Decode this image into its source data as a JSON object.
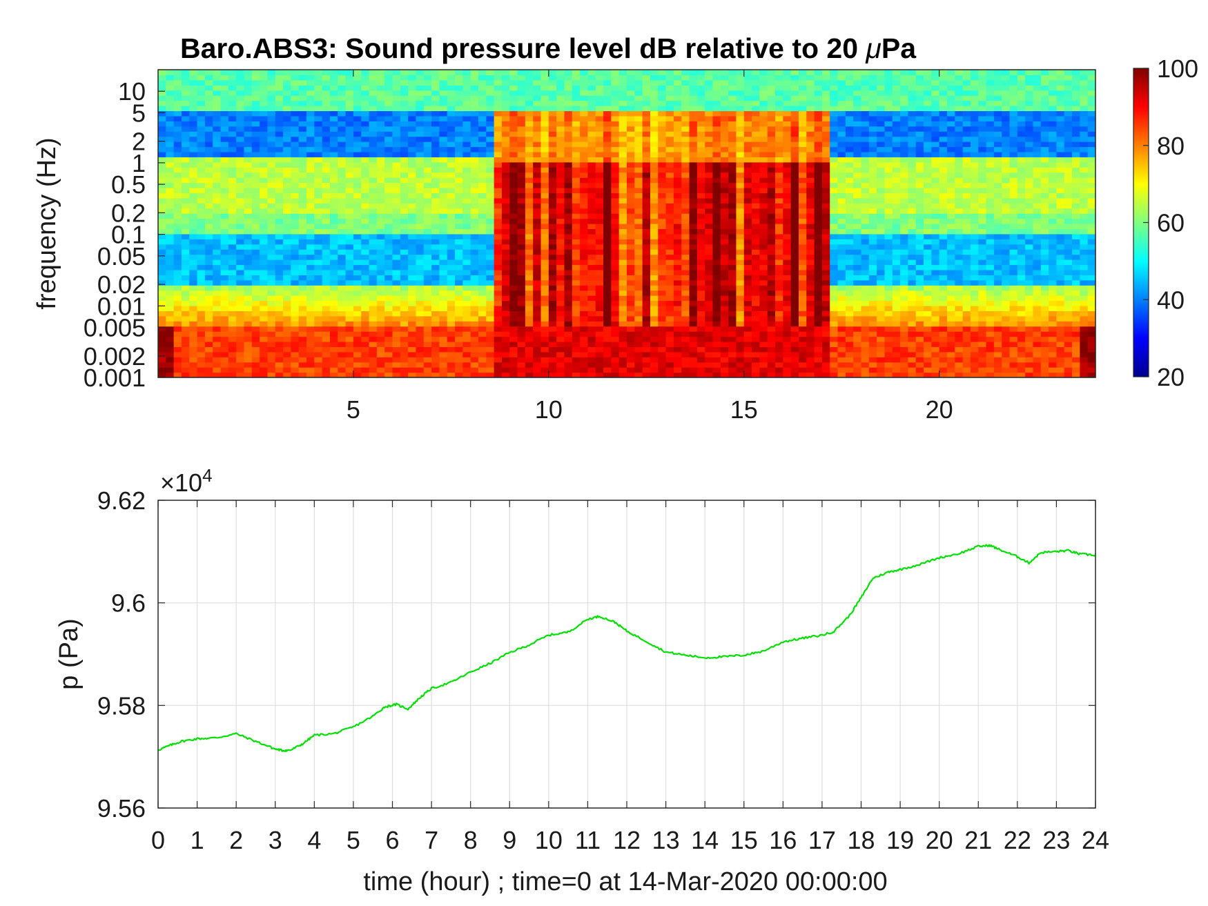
{
  "chart_data": [
    {
      "type": "heatmap",
      "title": "Baro.ABS3: Sound pressure level dB relative to 20 μPa",
      "title_prefix": "Baro.ABS3: Sound pressure level dB relative to 20 ",
      "title_mu": "μ",
      "title_suffix": "Pa",
      "ylabel": "frequency (Hz)",
      "xlabel": "",
      "x_unit": "hour",
      "xlim": [
        0,
        24
      ],
      "ylim": [
        0.001,
        20
      ],
      "yscale": "log",
      "x_ticks": [
        5,
        10,
        15,
        20
      ],
      "y_ticks": [
        {
          "value": 10,
          "label": "10"
        },
        {
          "value": 5,
          "label": "5"
        },
        {
          "value": 2,
          "label": "2"
        },
        {
          "value": 1,
          "label": "1"
        },
        {
          "value": 0.5,
          "label": "0.5"
        },
        {
          "value": 0.2,
          "label": "0.2"
        },
        {
          "value": 0.1,
          "label": "0.1"
        },
        {
          "value": 0.05,
          "label": "0.05"
        },
        {
          "value": 0.02,
          "label": "0.02"
        },
        {
          "value": 0.01,
          "label": "0.01"
        },
        {
          "value": 0.005,
          "label": "0.005"
        },
        {
          "value": 0.002,
          "label": "0.002"
        },
        {
          "value": 0.001,
          "label": "0.001"
        }
      ],
      "colorbar": {
        "colormap": "jet",
        "range": [
          20,
          100
        ],
        "ticks": [
          20,
          40,
          60,
          80,
          100
        ],
        "unit": "dB"
      },
      "active_period_hours": [
        8.5,
        17.2
      ],
      "background_level_db": {
        "above_5Hz": 57,
        "band_1_5Hz": 40,
        "band_0.2_0.5Hz": 65,
        "band_0.02_0.1Hz": 45,
        "below_0.005Hz": 85
      },
      "active_level_db": {
        "band_0.02_1Hz": 85,
        "below_0.005Hz": 92
      }
    },
    {
      "type": "line",
      "title": "",
      "xlabel": "time (hour) ; time=0 at 14-Mar-2020 00:00:00",
      "ylabel": "p (Pa)",
      "multiplier_base": "×10",
      "multiplier_exp": "4",
      "xlim": [
        0,
        24
      ],
      "ylim": [
        95600,
        96200
      ],
      "grid": true,
      "x_ticks": [
        0,
        1,
        2,
        3,
        4,
        5,
        6,
        7,
        8,
        9,
        10,
        11,
        12,
        13,
        14,
        15,
        16,
        17,
        18,
        19,
        20,
        21,
        22,
        23,
        24
      ],
      "y_ticks": [
        {
          "value": 95600,
          "label": "9.56"
        },
        {
          "value": 95800,
          "label": "9.58"
        },
        {
          "value": 96000,
          "label": "9.6"
        },
        {
          "value": 96200,
          "label": "9.62"
        }
      ],
      "series": [
        {
          "color": "#00e000",
          "x": [
            0,
            0.3,
            0.6,
            1.0,
            1.5,
            2.0,
            2.5,
            3.0,
            3.2,
            3.4,
            3.7,
            4.0,
            4.5,
            5.0,
            5.5,
            5.8,
            6.1,
            6.4,
            6.7,
            7.0,
            7.5,
            8.0,
            8.5,
            9.0,
            9.5,
            10.0,
            10.5,
            11.0,
            11.3,
            11.7,
            12.0,
            12.5,
            13.0,
            13.5,
            14.0,
            14.5,
            15.0,
            15.5,
            16.0,
            16.5,
            17.0,
            17.3,
            17.7,
            18.0,
            18.3,
            18.7,
            19.0,
            19.5,
            20.0,
            20.5,
            21.0,
            21.3,
            21.6,
            22.0,
            22.3,
            22.6,
            23.0,
            23.3,
            23.6,
            24.0
          ],
          "y": [
            95713,
            95722,
            95730,
            95735,
            95737,
            95745,
            95730,
            95715,
            95712,
            95713,
            95725,
            95742,
            95745,
            95758,
            95779,
            95797,
            95802,
            95793,
            95815,
            95833,
            95845,
            95865,
            95882,
            95903,
            95918,
            95937,
            95943,
            95968,
            95974,
            95962,
            95945,
            95925,
            95904,
            95898,
            95893,
            95895,
            95898,
            95906,
            95924,
            95931,
            95937,
            95944,
            95975,
            96010,
            96048,
            96060,
            96065,
            96075,
            96088,
            96096,
            96110,
            96112,
            96102,
            96090,
            96078,
            96098,
            96100,
            96102,
            96095,
            96093
          ]
        }
      ]
    }
  ]
}
